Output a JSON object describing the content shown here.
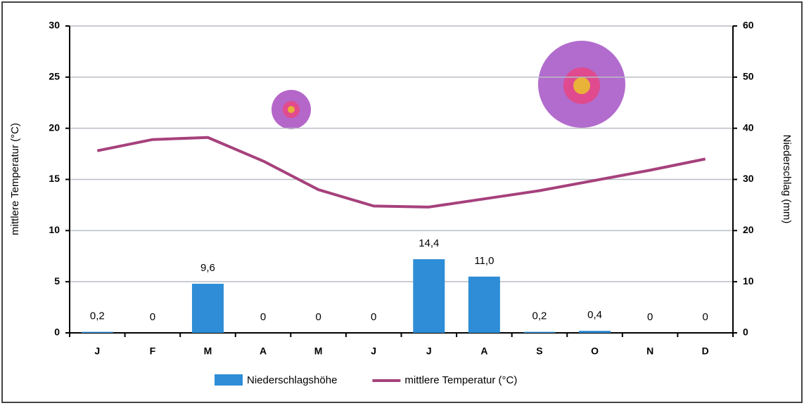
{
  "chart_data": {
    "type": "bar",
    "categories": [
      "J",
      "F",
      "M",
      "A",
      "M",
      "J",
      "J",
      "A",
      "S",
      "O",
      "N",
      "D"
    ],
    "series": [
      {
        "name": "Niederschlagshöhe",
        "type": "bar",
        "axis": "y2",
        "color": "#2e8dd6",
        "values": [
          0.2,
          0,
          9.6,
          0,
          0,
          0,
          14.4,
          11.0,
          0.2,
          0.4,
          0,
          0
        ],
        "value_labels": [
          "0,2",
          "0",
          "9,6",
          "0",
          "0",
          "0",
          "14,4",
          "11,0",
          "0,2",
          "0,4",
          "0",
          "0"
        ]
      },
      {
        "name": "mittlere Temperatur (°C)",
        "type": "line",
        "color": "#a6417c",
        "values": [
          17.8,
          18.9,
          19.1,
          16.8,
          14.0,
          12.4,
          12.3,
          13.1,
          13.9,
          14.9,
          15.9,
          17.0
        ]
      }
    ],
    "ylabel": "mittlere Temperatur (°C)",
    "y2label": "Niederschlag (mm)",
    "ylim": [
      0,
      30
    ],
    "yticks": [
      0,
      5,
      10,
      15,
      20,
      25,
      30
    ],
    "y2lim": [
      0,
      60
    ],
    "y2ticks": [
      0,
      10,
      20,
      30,
      40,
      50,
      60
    ],
    "grid": true,
    "legend": "bottom"
  }
}
